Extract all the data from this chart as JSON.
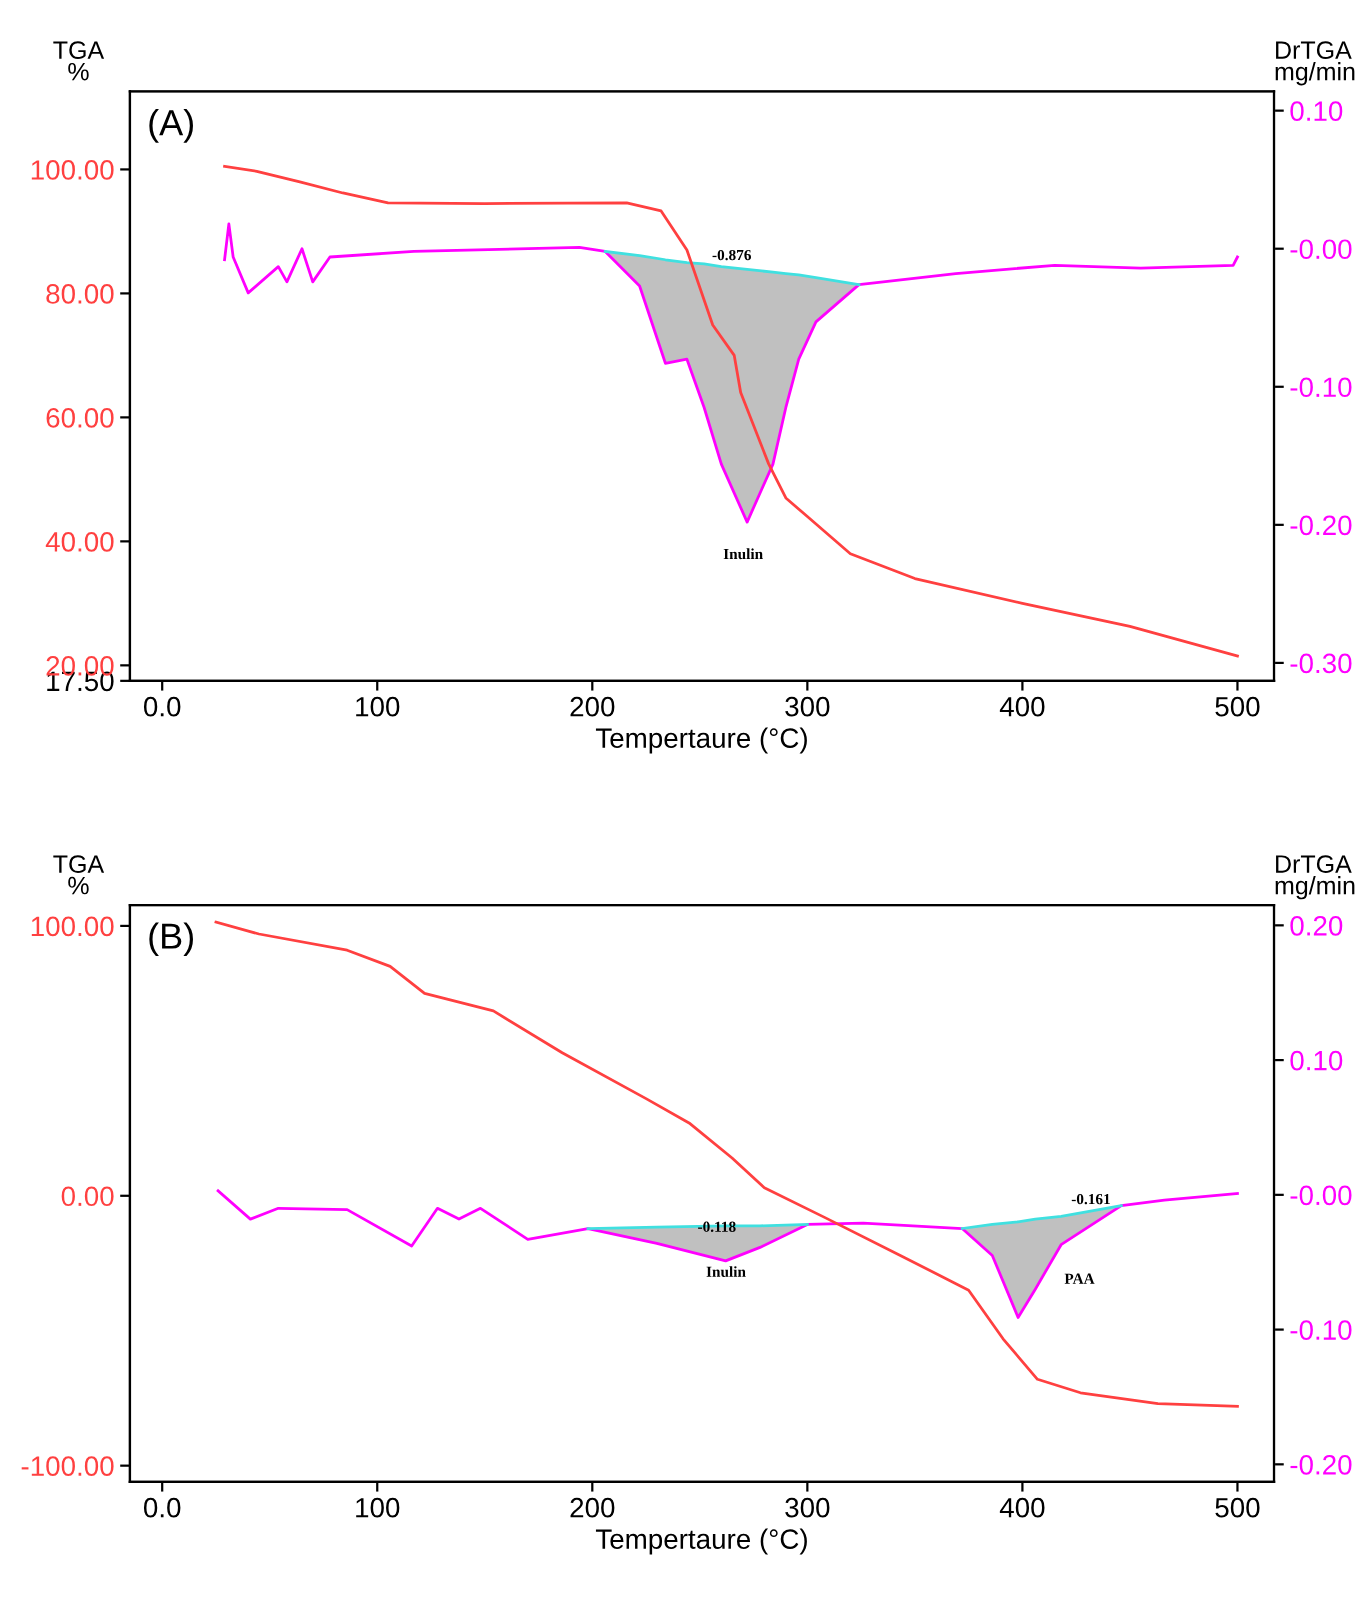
{
  "chart_data": [
    {
      "type": "line",
      "xlabel": "Tempertaure (°C)",
      "ylabel": "TGA\n%",
      "y2label": "DrTGA\nmg/min",
      "xlim": [
        -15,
        517
      ],
      "xticks": [
        {
          "value": 0,
          "label": "0.0"
        },
        100,
        200,
        300,
        400,
        500
      ],
      "ylim": [
        17.5,
        112.6
      ],
      "yticks": [
        {
          "value": 17.5,
          "label": "17.50"
        },
        {
          "value": 20,
          "label": "20.00"
        },
        {
          "value": 40,
          "label": "40.00"
        },
        {
          "value": 60,
          "label": "60.00"
        },
        {
          "value": 80,
          "label": "80.00"
        },
        {
          "value": 100,
          "label": "100.00"
        }
      ],
      "y2lim": [
        -0.313,
        0.114
      ],
      "y2ticks": [
        {
          "value": -0.3,
          "label": "-0.30"
        },
        {
          "value": -0.2,
          "label": "-0.20"
        },
        {
          "value": -0.1,
          "label": "-0.10"
        },
        {
          "value": 0,
          "label": "-0.00"
        },
        {
          "value": 0.1,
          "label": "0.10"
        }
      ],
      "grid": false,
      "legend": false,
      "series": [
        {
          "color": "#ff4040",
          "x": [
            29,
            44,
            64,
            84,
            105,
            150,
            216,
            232,
            244,
            256,
            266,
            269,
            282,
            290,
            300,
            320,
            350,
            400,
            450,
            500
          ],
          "values": [
            100.5,
            99.7,
            98,
            96.2,
            94.6,
            94.5,
            94.6,
            93.3,
            87,
            74.9,
            70,
            64,
            52.5,
            47,
            44,
            38,
            34,
            30,
            26.3,
            21.5
          ]
        },
        {
          "color": "#ff00ff",
          "axis": "y2",
          "x": [
            29,
            31,
            33,
            40,
            54,
            58,
            65,
            70,
            78,
            117,
            194,
            206,
            222,
            234,
            244,
            252,
            260,
            272,
            284,
            290,
            296,
            304,
            324,
            369,
            415,
            455,
            498,
            500
          ],
          "values": [
            -0.008,
            0.018,
            -0.006,
            -0.032,
            -0.013,
            -0.024,
            0,
            -0.024,
            -0.006,
            -0.002,
            0.001,
            -0.002,
            -0.027,
            -0.083,
            -0.08,
            -0.115,
            -0.156,
            -0.198,
            -0.156,
            -0.115,
            -0.08,
            -0.053,
            -0.026,
            -0.018,
            -0.012,
            -0.014,
            -0.012,
            -0.006
          ]
        },
        {
          "type": "line",
          "color": "#40e0e0",
          "axis": "y2",
          "x": [
            206,
            222,
            234,
            244,
            252,
            260,
            272,
            284,
            290,
            296,
            304,
            324
          ],
          "values": [
            -0.002,
            -0.005,
            -0.008,
            -0.01,
            -0.011,
            -0.013,
            -0.015,
            -0.017,
            -0.018,
            -0.019,
            -0.021,
            -0.026
          ],
          "lower": [
            -0.002,
            -0.027,
            -0.083,
            -0.08,
            -0.115,
            -0.156,
            -0.198,
            -0.156,
            -0.115,
            -0.08,
            -0.053,
            -0.026
          ],
          "upper": [
            -0.002,
            -0.005,
            -0.008,
            -0.01,
            -0.011,
            -0.013,
            -0.015,
            -0.017,
            -0.018,
            -0.019,
            -0.021,
            -0.026
          ]
        }
      ],
      "annotations": [
        "(A)",
        "-0.876",
        "Inulin"
      ]
    },
    {
      "type": "line",
      "xlabel": "Tempertaure (°C)",
      "ylabel": "TGA\n%",
      "y2label": "DrTGA\nmg/min",
      "xlim": [
        -15,
        517
      ],
      "xticks": [
        {
          "value": 0,
          "label": "0.0"
        },
        100,
        200,
        300,
        400,
        500
      ],
      "ylim": [
        -106,
        107.7
      ],
      "yticks": [
        {
          "value": -100,
          "label": "-100.00"
        },
        {
          "value": 0,
          "label": "0.00"
        },
        {
          "value": 100,
          "label": "100.00"
        }
      ],
      "y2lim": [
        -0.213,
        0.215
      ],
      "y2ticks": [
        {
          "value": -0.2,
          "label": "-0.20"
        },
        {
          "value": -0.1,
          "label": "-0.10"
        },
        {
          "value": 0,
          "label": "-0.00"
        },
        {
          "value": 0.1,
          "label": "0.10"
        },
        {
          "value": 0.2,
          "label": "0.20"
        }
      ],
      "grid": false,
      "legend": false,
      "series": [
        {
          "color": "#ff4040",
          "x": [
            25,
            45,
            86,
            106,
            122,
            154,
            186,
            225,
            245,
            265,
            280,
            308,
            343,
            375,
            391,
            407,
            427,
            463,
            500
          ],
          "values": [
            101.4,
            97,
            91,
            85,
            75,
            68.5,
            53,
            36,
            27,
            14,
            3,
            -8,
            -22,
            -35,
            -53,
            -68,
            -73,
            -77,
            -78
          ]
        },
        {
          "color": "#ff00ff",
          "axis": "y2",
          "x": [
            26,
            41,
            54,
            86,
            116,
            128,
            138,
            148,
            170,
            198,
            230,
            262,
            278,
            300,
            326,
            372,
            386,
            398,
            406,
            418,
            446,
            466,
            500
          ],
          "values": [
            0.003,
            -0.018,
            -0.01,
            -0.011,
            -0.038,
            -0.01,
            -0.018,
            -0.01,
            -0.033,
            -0.025,
            -0.036,
            -0.049,
            -0.039,
            -0.022,
            -0.021,
            -0.025,
            -0.045,
            -0.091,
            -0.07,
            -0.037,
            -0.008,
            -0.004,
            0.001
          ]
        },
        {
          "type": "line",
          "color": "#40e0e0",
          "axis": "y2",
          "x": [
            198,
            230,
            262,
            278,
            300
          ],
          "values": [
            -0.025,
            -0.024,
            -0.023,
            -0.023,
            -0.022
          ],
          "lower": [
            -0.025,
            -0.036,
            -0.049,
            -0.039,
            -0.022
          ],
          "upper": [
            -0.025,
            -0.024,
            -0.023,
            -0.023,
            -0.022
          ]
        },
        {
          "type": "line",
          "color": "#40e0e0",
          "axis": "y2",
          "x": [
            372,
            386,
            398,
            406,
            418,
            446
          ],
          "values": [
            -0.025,
            -0.022,
            -0.02,
            -0.018,
            -0.016,
            -0.008
          ],
          "lower": [
            -0.025,
            -0.045,
            -0.091,
            -0.07,
            -0.037,
            -0.008
          ],
          "upper": [
            -0.025,
            -0.022,
            -0.02,
            -0.018,
            -0.016,
            -0.008
          ]
        }
      ],
      "annotations": [
        "(B)",
        "-0.118",
        "Inulin",
        "-0.161",
        "PAA"
      ]
    }
  ]
}
